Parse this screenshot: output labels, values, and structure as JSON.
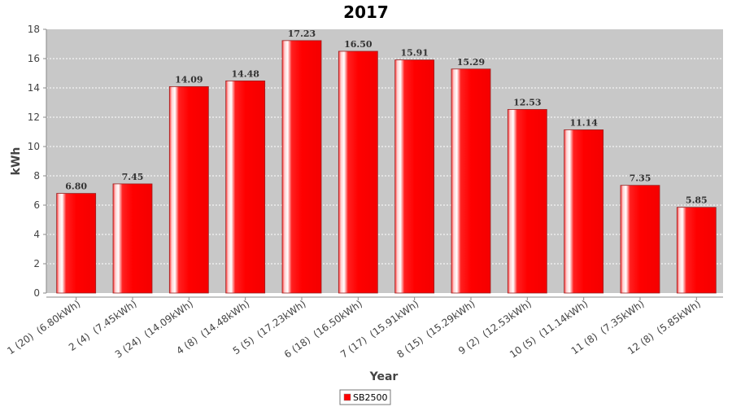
{
  "chart_data": {
    "type": "bar",
    "title": "2017",
    "xlabel": "Year",
    "ylabel": "kWh",
    "ylim": [
      0,
      18
    ],
    "yticks": [
      0,
      2,
      4,
      6,
      8,
      10,
      12,
      14,
      16,
      18
    ],
    "grid": true,
    "legend_position": "bottom-center",
    "categories": [
      "1 (20)  (6.80kWh)",
      "2 (4)  (7.45kWh)",
      "3 (24)  (14.09kWh)",
      "4 (8)  (14.48kWh)",
      "5 (5)  (17.23kWh)",
      "6 (18)  (16.50kWh)",
      "7 (17)  (15.91kWh)",
      "8 (15)  (15.29kWh)",
      "9 (2)  (12.53kWh)",
      "10 (5)  (11.14kWh)",
      "11 (8)  (7.35kWh)",
      "12 (8)  (5.85kWh)"
    ],
    "series": [
      {
        "name": "SB2500",
        "color": "#ff0000",
        "values": [
          6.8,
          7.45,
          14.09,
          14.48,
          17.23,
          16.5,
          15.91,
          15.29,
          12.53,
          11.14,
          7.35,
          5.85
        ],
        "labels": [
          "6.80",
          "7.45",
          "14.09",
          "14.48",
          "17.23",
          "16.50",
          "15.91",
          "15.29",
          "12.53",
          "11.14",
          "7.35",
          "5.85"
        ]
      }
    ],
    "colors": {
      "plot_background": "#c8c8c8",
      "grid": "#ffffff",
      "bar": "#ff0000"
    }
  }
}
